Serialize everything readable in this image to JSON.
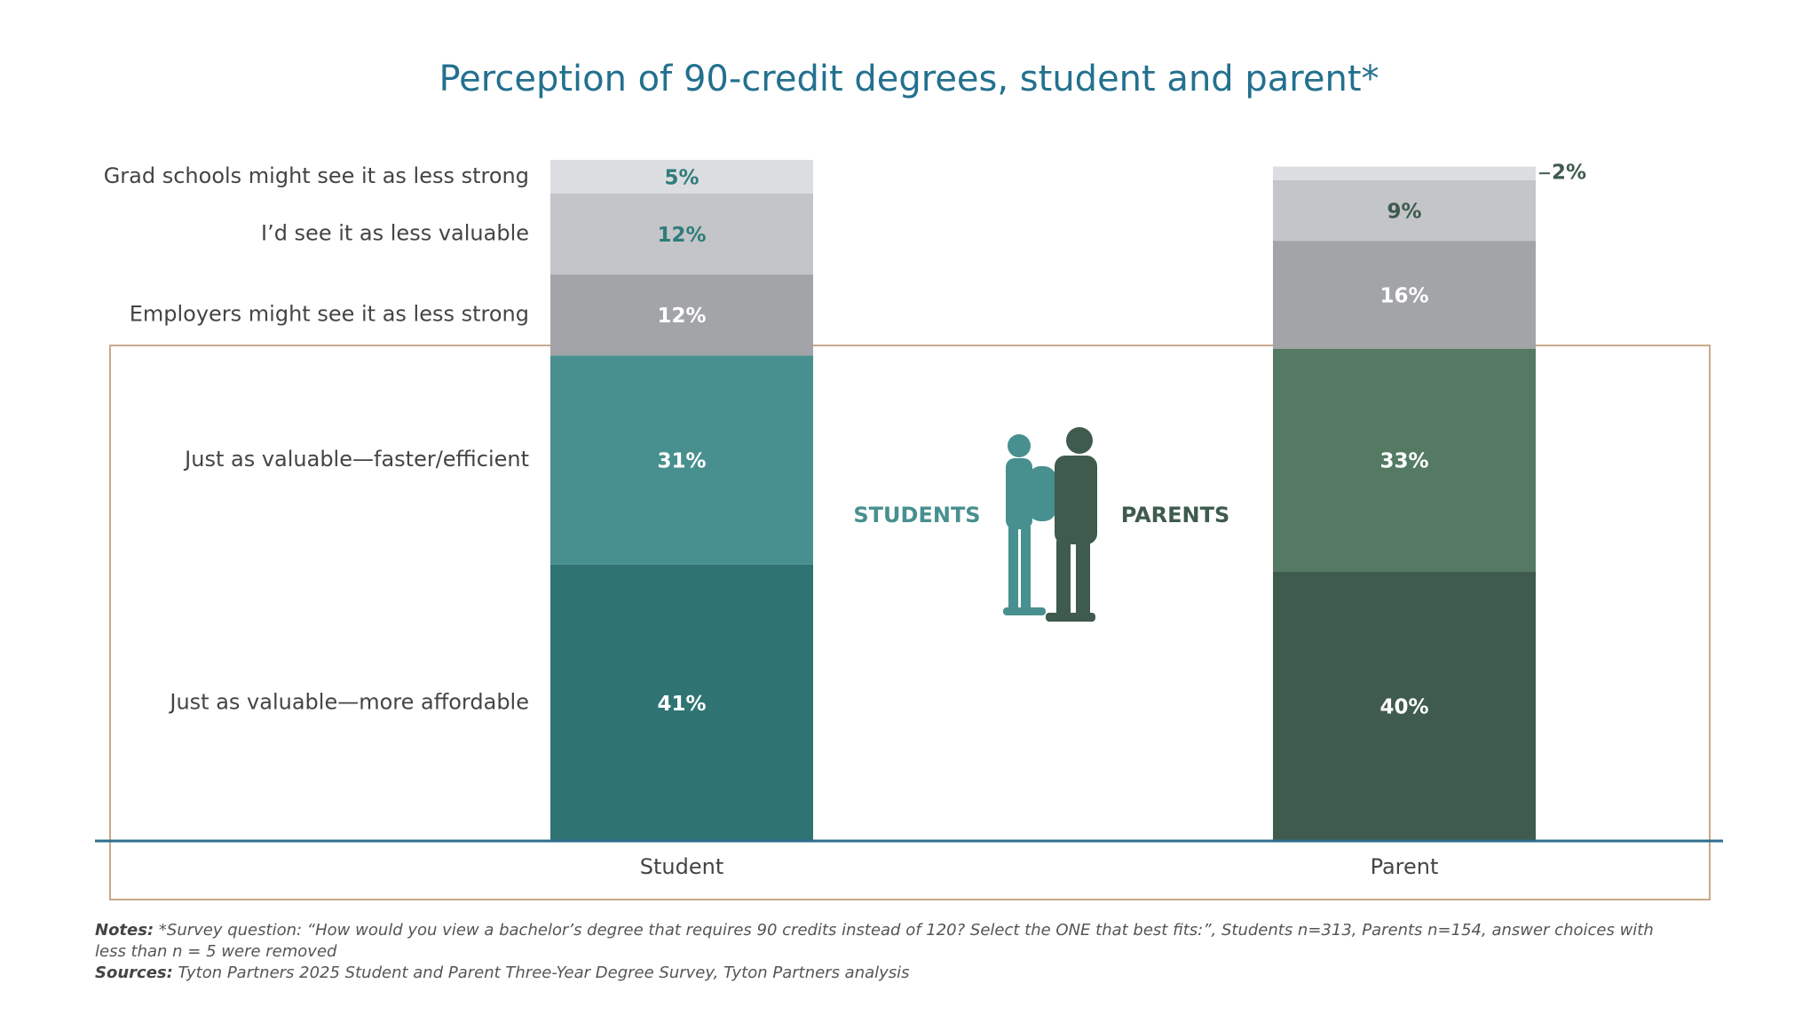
{
  "chart_data": {
    "type": "stacked_bar",
    "title": "Perception of 90-credit degrees, student and parent*",
    "categories": [
      "Student",
      "Parent"
    ],
    "ylim": [
      0,
      101
    ],
    "series": [
      {
        "name": "Just as valuable—more affordable",
        "colors": [
          "#2f7473",
          "#3f5b4d"
        ],
        "label_colors": [
          "#ffffff",
          "#ffffff"
        ],
        "values": [
          41,
          40
        ],
        "value_labels": [
          "41%",
          "40%"
        ]
      },
      {
        "name": "Just as valuable—faster/efficient",
        "colors": [
          "#48908f",
          "#557a64"
        ],
        "label_colors": [
          "#ffffff",
          "#ffffff"
        ],
        "values": [
          31,
          33
        ],
        "value_labels": [
          "31%",
          "33%"
        ]
      },
      {
        "name": "Employers might see it as less strong",
        "colors": [
          "#a2a4a7",
          "#a2a4a7"
        ],
        "label_colors": [
          "#ffffff",
          "#ffffff"
        ],
        "values": [
          12,
          16
        ],
        "value_labels": [
          "12%",
          "16%"
        ]
      },
      {
        "name": "I’d see it as less valuable",
        "colors": [
          "#c4c5c8",
          "#c4c5c8"
        ],
        "label_colors": [
          "#2e7d7a",
          "#3f5b4d"
        ],
        "values": [
          12,
          9
        ],
        "value_labels": [
          "12%",
          "9%"
        ]
      },
      {
        "name": "Grad schools might see it as less strong",
        "colors": [
          "#dcdde0",
          "#dcdde0"
        ],
        "label_colors": [
          "#2e7d7a",
          "#3f5b4d"
        ],
        "values": [
          5,
          2
        ],
        "value_labels": [
          "5%",
          "2%"
        ]
      }
    ],
    "annotations": [
      {
        "text": "STUDENTS",
        "color": "#48908f"
      },
      {
        "text": "PARENTS",
        "color": "#3f5b4d"
      }
    ],
    "notes_label": "Notes:",
    "notes": "*Survey question: “How would you view a bachelor’s degree that requires 90 credits instead of 120? Select the ONE that best fits:”, Students n=313, Parents n=154, answer choices with less than n = 5 were removed",
    "sources_label": "Sources:",
    "sources": "Tyton Partners 2025 Student and Parent Three-Year Degree Survey, Tyton Partners analysis"
  }
}
